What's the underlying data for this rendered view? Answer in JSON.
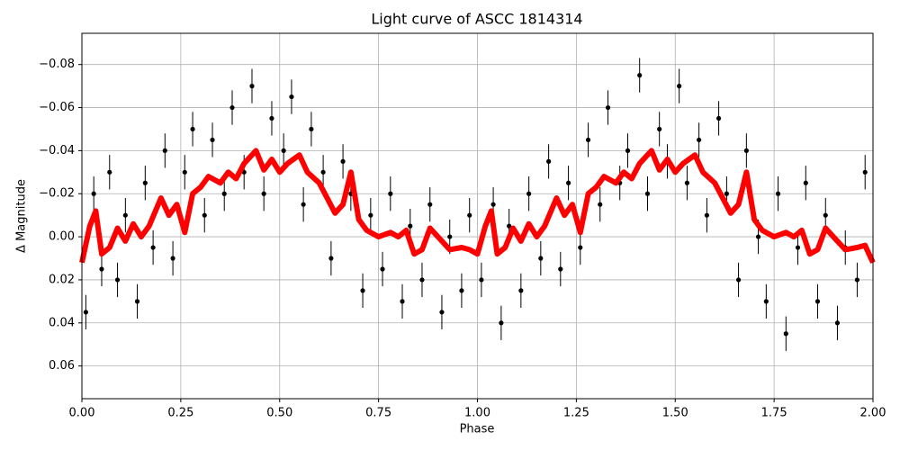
{
  "chart_data": {
    "type": "scatter",
    "title": "Light curve of ASCC 1814314",
    "x_label": "Phase",
    "y_label": "Δ Magnitude",
    "xlim": [
      0,
      2
    ],
    "ylim": [
      -0.0945,
      0.0752
    ],
    "y_inverted": true,
    "grid": true,
    "xticks": [
      {
        "value": 0,
        "label": "0.00"
      },
      {
        "value": 0.25,
        "label": "0.25"
      },
      {
        "value": 0.5,
        "label": "0.50"
      },
      {
        "value": 0.75,
        "label": "0.75"
      },
      {
        "value": 1,
        "label": "1.00"
      },
      {
        "value": 1.25,
        "label": "1.25"
      },
      {
        "value": 1.5,
        "label": "1.50"
      },
      {
        "value": 1.75,
        "label": "1.75"
      },
      {
        "value": 2,
        "label": "2.00"
      }
    ],
    "yticks": [
      {
        "value": -0.08,
        "label": "−0.08"
      },
      {
        "value": -0.06,
        "label": "−0.06"
      },
      {
        "value": -0.04,
        "label": "−0.04"
      },
      {
        "value": -0.02,
        "label": "−0.02"
      },
      {
        "value": 0,
        "label": "0.00"
      },
      0.02,
      0.04,
      0.06
    ],
    "points": {
      "color": "#000000",
      "yerr": 0.008,
      "x": [
        0.01,
        0.03,
        0.05,
        0.07,
        0.09,
        0.11,
        0.14,
        0.16,
        0.18,
        0.21,
        0.23,
        0.26,
        0.28,
        0.31,
        0.33,
        0.36,
        0.38,
        0.41,
        0.43,
        0.46,
        0.48,
        0.51,
        0.53,
        0.56,
        0.58,
        0.61,
        0.63,
        0.66,
        0.68,
        0.71,
        0.73,
        0.76,
        0.78,
        0.81,
        0.83,
        0.86,
        0.88,
        0.91,
        0.93,
        0.96,
        0.98,
        1.01,
        1.04,
        1.06,
        1.08,
        1.11,
        1.13,
        1.16,
        1.18,
        1.21,
        1.23,
        1.26,
        1.28,
        1.31,
        1.33,
        1.36,
        1.38,
        1.41,
        1.43,
        1.46,
        1.48,
        1.51,
        1.53,
        1.56,
        1.58,
        1.61,
        1.63,
        1.66,
        1.68,
        1.71,
        1.73,
        1.76,
        1.78,
        1.81,
        1.83,
        1.86,
        1.88,
        1.91,
        1.93,
        1.96,
        1.98
      ],
      "values": [
        0.035,
        -0.02,
        0.015,
        -0.03,
        0.02,
        -0.01,
        0.03,
        -0.025,
        0.005,
        -0.04,
        0.01,
        -0.03,
        -0.05,
        -0.01,
        -0.045,
        -0.02,
        -0.06,
        -0.03,
        -0.07,
        -0.02,
        -0.055,
        -0.04,
        -0.065,
        -0.015,
        -0.05,
        -0.03,
        0.01,
        -0.035,
        -0.02,
        0.025,
        -0.01,
        0.015,
        -0.02,
        0.03,
        -0.005,
        0.02,
        -0.015,
        0.035,
        0.0,
        0.025,
        -0.01,
        0.02,
        -0.015,
        0.04,
        -0.005,
        0.025,
        -0.02,
        0.01,
        -0.035,
        0.015,
        -0.025,
        0.005,
        -0.045,
        -0.015,
        -0.06,
        -0.025,
        -0.04,
        -0.075,
        -0.02,
        -0.05,
        -0.035,
        -0.07,
        -0.025,
        -0.045,
        -0.01,
        -0.055,
        -0.02,
        0.02,
        -0.04,
        0.0,
        0.03,
        -0.02,
        0.045,
        0.005,
        -0.025,
        0.03,
        -0.01,
        0.04,
        0.005,
        0.02,
        -0.03
      ]
    },
    "model": {
      "color": "#ff0000",
      "x": [
        0,
        0.02,
        0.035,
        0.05,
        0.07,
        0.09,
        0.11,
        0.13,
        0.15,
        0.17,
        0.2,
        0.22,
        0.24,
        0.26,
        0.28,
        0.3,
        0.32,
        0.35,
        0.37,
        0.39,
        0.41,
        0.44,
        0.46,
        0.48,
        0.5,
        0.52,
        0.55,
        0.57,
        0.6,
        0.62,
        0.64,
        0.66,
        0.68,
        0.7,
        0.72,
        0.75,
        0.78,
        0.8,
        0.82,
        0.84,
        0.86,
        0.88,
        0.9,
        0.93,
        0.96,
        0.98,
        1.0,
        1.02,
        1.035,
        1.05,
        1.07,
        1.09,
        1.11,
        1.13,
        1.15,
        1.17,
        1.2,
        1.22,
        1.24,
        1.26,
        1.28,
        1.3,
        1.32,
        1.35,
        1.37,
        1.39,
        1.41,
        1.44,
        1.46,
        1.48,
        1.5,
        1.52,
        1.55,
        1.57,
        1.6,
        1.62,
        1.64,
        1.66,
        1.68,
        1.7,
        1.72,
        1.75,
        1.78,
        1.8,
        1.82,
        1.84,
        1.86,
        1.88,
        1.9,
        1.93,
        1.96,
        1.98,
        2.0
      ],
      "values": [
        0.012,
        -0.005,
        -0.012,
        0.008,
        0.005,
        -0.004,
        0.002,
        -0.006,
        0.0,
        -0.005,
        -0.018,
        -0.01,
        -0.015,
        -0.002,
        -0.02,
        -0.023,
        -0.028,
        -0.025,
        -0.03,
        -0.027,
        -0.034,
        -0.04,
        -0.031,
        -0.036,
        -0.03,
        -0.034,
        -0.038,
        -0.03,
        -0.025,
        -0.018,
        -0.011,
        -0.015,
        -0.03,
        -0.008,
        -0.003,
        0.0,
        -0.002,
        0.0,
        -0.003,
        0.008,
        0.006,
        -0.004,
        0.0,
        0.006,
        0.005,
        0.006,
        0.008,
        -0.005,
        -0.012,
        0.008,
        0.005,
        -0.004,
        0.002,
        -0.006,
        0.0,
        -0.005,
        -0.018,
        -0.01,
        -0.015,
        -0.002,
        -0.02,
        -0.023,
        -0.028,
        -0.025,
        -0.03,
        -0.027,
        -0.034,
        -0.04,
        -0.031,
        -0.036,
        -0.03,
        -0.034,
        -0.038,
        -0.03,
        -0.025,
        -0.018,
        -0.011,
        -0.015,
        -0.03,
        -0.008,
        -0.003,
        0.0,
        -0.002,
        0.0,
        -0.003,
        0.008,
        0.006,
        -0.004,
        0.0,
        0.006,
        0.005,
        0.004,
        0.012
      ]
    }
  }
}
